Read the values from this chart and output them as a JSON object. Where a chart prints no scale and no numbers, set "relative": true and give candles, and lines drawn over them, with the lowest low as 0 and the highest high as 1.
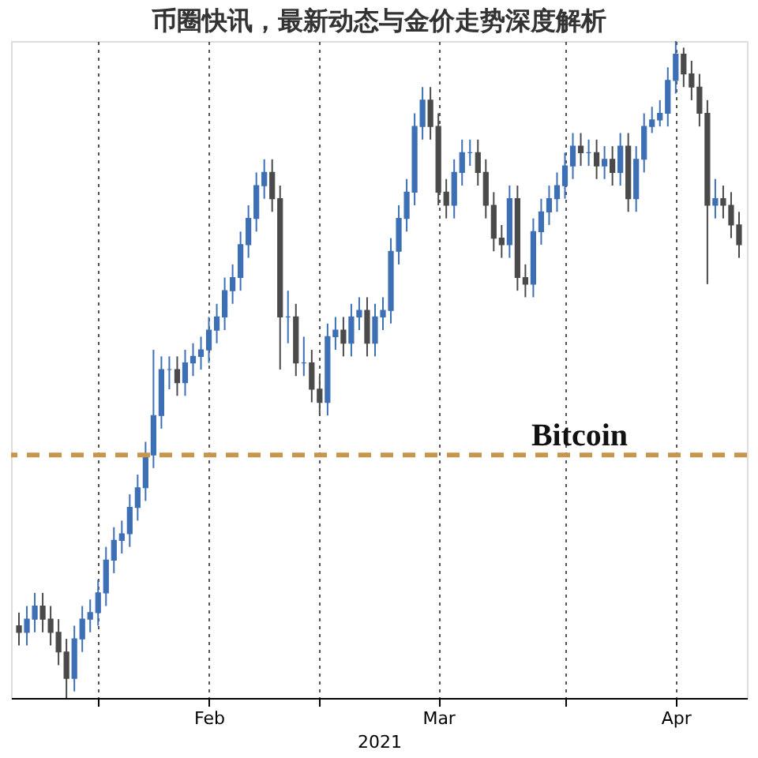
{
  "chart_data": {
    "type": "candlestick",
    "title": "币圈快讯，最新动态与金价走势深度解析",
    "xlabel": "2021",
    "relative": true,
    "grid": "x",
    "colors": [
      "#4a4a4a",
      "#3d6fb5",
      "#3d6fb5",
      "#4a4a4a",
      "#4a4a4a",
      "#4a4a4a",
      "#4a4a4a",
      "#3d6fb5",
      "#3d6fb5",
      "#3d6fb5",
      "#3d6fb5",
      "#3d6fb5",
      "#3d6fb5",
      "#3d6fb5",
      "#3d6fb5",
      "#3d6fb5",
      "#3d6fb5",
      "#3d6fb5",
      "#3d6fb5",
      "#3d6fb5",
      "#4a4a4a",
      "#3d6fb5",
      "#3d6fb5",
      "#3d6fb5",
      "#3d6fb5",
      "#3d6fb5",
      "#3d6fb5",
      "#3d6fb5",
      "#3d6fb5",
      "#3d6fb5",
      "#3d6fb5",
      "#3d6fb5",
      "#4a4a4a",
      "#4a4a4a",
      "#3d6fb5",
      "#4a4a4a",
      "#3d6fb5",
      "#4a4a4a",
      "#4a4a4a",
      "#3d6fb5",
      "#3d6fb5",
      "#4a4a4a",
      "#3d6fb5",
      "#3d6fb5",
      "#4a4a4a",
      "#3d6fb5",
      "#3d6fb5",
      "#3d6fb5",
      "#3d6fb5",
      "#3d6fb5",
      "#3d6fb5",
      "#3d6fb5",
      "#4a4a4a",
      "#4a4a4a",
      "#4a4a4a",
      "#3d6fb5",
      "#3d6fb5",
      "#3d6fb5",
      "#4a4a4a",
      "#4a4a4a",
      "#4a4a4a",
      "#4a4a4a",
      "#3d6fb5",
      "#4a4a4a",
      "#4a4a4a",
      "#3d6fb5",
      "#3d6fb5",
      "#3d6fb5",
      "#3d6fb5",
      "#3d6fb5",
      "#3d6fb5",
      "#4a4a4a",
      "#3d6fb5",
      "#4a4a4a",
      "#3d6fb5",
      "#4a4a4a",
      "#3d6fb5",
      "#4a4a4a",
      "#3d6fb5",
      "#3d6fb5",
      "#3d6fb5",
      "#3d6fb5",
      "#3d6fb5",
      "#3d6fb5",
      "#4a4a4a",
      "#4a4a4a",
      "#4a4a4a",
      "#4a4a4a",
      "#3d6fb5",
      "#4a4a4a",
      "#4a4a4a",
      "#4a4a4a"
    ],
    "annotations": [
      "Bitcoin"
    ],
    "ref_lines": [
      {
        "axis": "y",
        "value": 0.37,
        "label": null,
        "color": "#c8964a",
        "line_style": "dashed"
      }
    ],
    "xlim": [
      "2021-01-21",
      "2021-04-24"
    ],
    "xticks": [
      {
        "value": "2021-02-01",
        "label": null
      },
      {
        "value": "2021-02-15",
        "label": "Feb"
      },
      {
        "value": "2021-03-01",
        "label": null
      },
      {
        "value": "2021-03-16",
        "label": "Mar"
      },
      {
        "value": "2021-04-01",
        "label": null
      },
      {
        "value": "2021-04-15",
        "label": "Apr"
      }
    ],
    "x": [
      "2021-01-22",
      "2021-01-23",
      "2021-01-24",
      "2021-01-25",
      "2021-01-26",
      "2021-01-27",
      "2021-01-28",
      "2021-01-29",
      "2021-01-30",
      "2021-01-31",
      "2021-02-01",
      "2021-02-02",
      "2021-02-03",
      "2021-02-04",
      "2021-02-05",
      "2021-02-06",
      "2021-02-07",
      "2021-02-08",
      "2021-02-09",
      "2021-02-10",
      "2021-02-11",
      "2021-02-12",
      "2021-02-13",
      "2021-02-14",
      "2021-02-15",
      "2021-02-16",
      "2021-02-17",
      "2021-02-18",
      "2021-02-19",
      "2021-02-20",
      "2021-02-21",
      "2021-02-22",
      "2021-02-23",
      "2021-02-24",
      "2021-02-25",
      "2021-02-26",
      "2021-02-27",
      "2021-02-28",
      "2021-03-01",
      "2021-03-02",
      "2021-03-03",
      "2021-03-04",
      "2021-03-05",
      "2021-03-06",
      "2021-03-07",
      "2021-03-08",
      "2021-03-09",
      "2021-03-10",
      "2021-03-11",
      "2021-03-12",
      "2021-03-13",
      "2021-03-14",
      "2021-03-15",
      "2021-03-16",
      "2021-03-17",
      "2021-03-18",
      "2021-03-19",
      "2021-03-20",
      "2021-03-21",
      "2021-03-22",
      "2021-03-23",
      "2021-03-24",
      "2021-03-25",
      "2021-03-26",
      "2021-03-27",
      "2021-03-28",
      "2021-03-29",
      "2021-03-30",
      "2021-03-31",
      "2021-04-01",
      "2021-04-02",
      "2021-04-03",
      "2021-04-04",
      "2021-04-05",
      "2021-04-06",
      "2021-04-07",
      "2021-04-08",
      "2021-04-09",
      "2021-04-10",
      "2021-04-11",
      "2021-04-12",
      "2021-04-13",
      "2021-04-14",
      "2021-04-15",
      "2021-04-16",
      "2021-04-17",
      "2021-04-18",
      "2021-04-19",
      "2021-04-20",
      "2021-04-21",
      "2021-04-22",
      "2021-04-23"
    ],
    "ohlc": [
      [
        0.11,
        0.13,
        0.08,
        0.1
      ],
      [
        0.1,
        0.14,
        0.08,
        0.12
      ],
      [
        0.12,
        0.16,
        0.1,
        0.14
      ],
      [
        0.14,
        0.16,
        0.1,
        0.12
      ],
      [
        0.12,
        0.14,
        0.08,
        0.1
      ],
      [
        0.1,
        0.12,
        0.05,
        0.07
      ],
      [
        0.07,
        0.09,
        0,
        0.03
      ],
      [
        0.03,
        0.11,
        0.01,
        0.09
      ],
      [
        0.09,
        0.14,
        0.07,
        0.12
      ],
      [
        0.12,
        0.15,
        0.1,
        0.13
      ],
      [
        0.13,
        0.18,
        0.11,
        0.16
      ],
      [
        0.16,
        0.23,
        0.14,
        0.21
      ],
      [
        0.21,
        0.26,
        0.19,
        0.24
      ],
      [
        0.24,
        0.27,
        0.22,
        0.25
      ],
      [
        0.25,
        0.31,
        0.23,
        0.29
      ],
      [
        0.29,
        0.34,
        0.27,
        0.32
      ],
      [
        0.32,
        0.39,
        0.3,
        0.37
      ],
      [
        0.37,
        0.53,
        0.35,
        0.43
      ],
      [
        0.43,
        0.52,
        0.41,
        0.5
      ],
      [
        0.5,
        0.52,
        0.47,
        0.5
      ],
      [
        0.5,
        0.52,
        0.46,
        0.48
      ],
      [
        0.48,
        0.53,
        0.46,
        0.51
      ],
      [
        0.51,
        0.54,
        0.49,
        0.52
      ],
      [
        0.52,
        0.55,
        0.5,
        0.53
      ],
      [
        0.53,
        0.58,
        0.51,
        0.56
      ],
      [
        0.56,
        0.6,
        0.54,
        0.58
      ],
      [
        0.58,
        0.64,
        0.56,
        0.62
      ],
      [
        0.62,
        0.66,
        0.6,
        0.64
      ],
      [
        0.64,
        0.71,
        0.62,
        0.69
      ],
      [
        0.69,
        0.75,
        0.67,
        0.73
      ],
      [
        0.73,
        0.8,
        0.71,
        0.78
      ],
      [
        0.78,
        0.82,
        0.76,
        0.8
      ],
      [
        0.8,
        0.82,
        0.74,
        0.76
      ],
      [
        0.76,
        0.78,
        0.5,
        0.58
      ],
      [
        0.58,
        0.62,
        0.54,
        0.58
      ],
      [
        0.58,
        0.6,
        0.49,
        0.51
      ],
      [
        0.51,
        0.55,
        0.49,
        0.51
      ],
      [
        0.51,
        0.53,
        0.45,
        0.47
      ],
      [
        0.47,
        0.49,
        0.43,
        0.45
      ],
      [
        0.45,
        0.57,
        0.43,
        0.55
      ],
      [
        0.55,
        0.58,
        0.53,
        0.56
      ],
      [
        0.56,
        0.58,
        0.52,
        0.54
      ],
      [
        0.54,
        0.6,
        0.52,
        0.58
      ],
      [
        0.58,
        0.61,
        0.56,
        0.59
      ],
      [
        0.59,
        0.61,
        0.52,
        0.54
      ],
      [
        0.54,
        0.6,
        0.52,
        0.58
      ],
      [
        0.58,
        0.61,
        0.56,
        0.59
      ],
      [
        0.59,
        0.7,
        0.57,
        0.68
      ],
      [
        0.68,
        0.75,
        0.66,
        0.73
      ],
      [
        0.73,
        0.79,
        0.71,
        0.77
      ],
      [
        0.77,
        0.89,
        0.75,
        0.87
      ],
      [
        0.87,
        0.93,
        0.85,
        0.91
      ],
      [
        0.91,
        0.93,
        0.85,
        0.87
      ],
      [
        0.87,
        0.89,
        0.75,
        0.77
      ],
      [
        0.77,
        0.79,
        0.73,
        0.75
      ],
      [
        0.75,
        0.82,
        0.73,
        0.8
      ],
      [
        0.8,
        0.85,
        0.78,
        0.83
      ],
      [
        0.83,
        0.85,
        0.81,
        0.83
      ],
      [
        0.83,
        0.85,
        0.78,
        0.8
      ],
      [
        0.8,
        0.82,
        0.73,
        0.75
      ],
      [
        0.75,
        0.77,
        0.68,
        0.7
      ],
      [
        0.7,
        0.72,
        0.67,
        0.69
      ],
      [
        0.69,
        0.78,
        0.67,
        0.76
      ],
      [
        0.76,
        0.78,
        0.62,
        0.64
      ],
      [
        0.64,
        0.66,
        0.61,
        0.63
      ],
      [
        0.63,
        0.73,
        0.61,
        0.71
      ],
      [
        0.71,
        0.76,
        0.69,
        0.74
      ],
      [
        0.74,
        0.78,
        0.72,
        0.76
      ],
      [
        0.76,
        0.8,
        0.74,
        0.78
      ],
      [
        0.78,
        0.83,
        0.76,
        0.81
      ],
      [
        0.81,
        0.86,
        0.79,
        0.84
      ],
      [
        0.84,
        0.86,
        0.81,
        0.83
      ],
      [
        0.83,
        0.85,
        0.81,
        0.83
      ],
      [
        0.83,
        0.85,
        0.79,
        0.81
      ],
      [
        0.81,
        0.84,
        0.79,
        0.82
      ],
      [
        0.82,
        0.84,
        0.78,
        0.8
      ],
      [
        0.8,
        0.86,
        0.78,
        0.84
      ],
      [
        0.84,
        0.86,
        0.74,
        0.76
      ],
      [
        0.76,
        0.84,
        0.74,
        0.82
      ],
      [
        0.82,
        0.89,
        0.8,
        0.87
      ],
      [
        0.87,
        0.9,
        0.86,
        0.88
      ],
      [
        0.88,
        0.91,
        0.87,
        0.89
      ],
      [
        0.89,
        0.96,
        0.87,
        0.94
      ],
      [
        0.94,
        1,
        0.92,
        0.98
      ],
      [
        0.98,
        0.99,
        0.93,
        0.95
      ],
      [
        0.95,
        0.97,
        0.91,
        0.93
      ],
      [
        0.93,
        0.95,
        0.87,
        0.89
      ],
      [
        0.89,
        0.91,
        0.63,
        0.75
      ],
      [
        0.75,
        0.79,
        0.73,
        0.76
      ],
      [
        0.76,
        0.78,
        0.73,
        0.75
      ],
      [
        0.75,
        0.77,
        0.7,
        0.72
      ],
      [
        0.72,
        0.74,
        0.67,
        0.69
      ]
    ]
  }
}
